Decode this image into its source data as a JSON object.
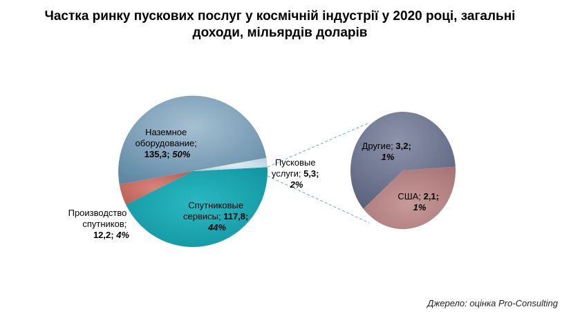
{
  "chart_data": {
    "type": "pie",
    "title": "Частка ринку пускових послуг у космічній індустрії у  2020 році, загальні доходи, мільярдів доларів",
    "title_lines": [
      "Частка ринку пускових послуг у космічній індустрії у  2020 році, загальні",
      "доходи, мільярдів доларів"
    ],
    "main_pie": {
      "slices": [
        {
          "key": "ground",
          "name_lines": [
            "Наземное",
            "оборудование;"
          ],
          "value": 135.3,
          "value_text": "135,3;",
          "percent": 50,
          "percent_text": "50%",
          "color": "#6f97b1"
        },
        {
          "key": "services",
          "name_lines": [
            "Спутниковые",
            "сервисы;"
          ],
          "value": 117.8,
          "value_text": "117,8;",
          "percent": 44,
          "percent_text": "44%",
          "color": "#1ea5b0"
        },
        {
          "key": "production",
          "name_lines": [
            "Производство",
            "спутников;"
          ],
          "value": 12.2,
          "value_text": "12,2;",
          "percent": 4,
          "percent_text": "4%",
          "color": "#c86c62"
        },
        {
          "key": "launch",
          "name_lines": [
            "Пусковые",
            "услуги;"
          ],
          "value": 5.3,
          "value_text": "5,3;",
          "percent": 2,
          "percent_text": "2%",
          "color": "#c7dbe6"
        }
      ]
    },
    "secondary_pie": {
      "slices": [
        {
          "key": "other",
          "name": "Другие;",
          "value": 3.2,
          "value_text": "3,2;",
          "percent": 1,
          "percent_text": "1%",
          "color": "#69708b"
        },
        {
          "key": "usa",
          "name": "США;",
          "value": 2.1,
          "value_text": "2,1;",
          "percent": 1,
          "percent_text": "1%",
          "color": "#b78585"
        }
      ]
    }
  },
  "source": "Джерело: оцінка Pro-Consulting"
}
